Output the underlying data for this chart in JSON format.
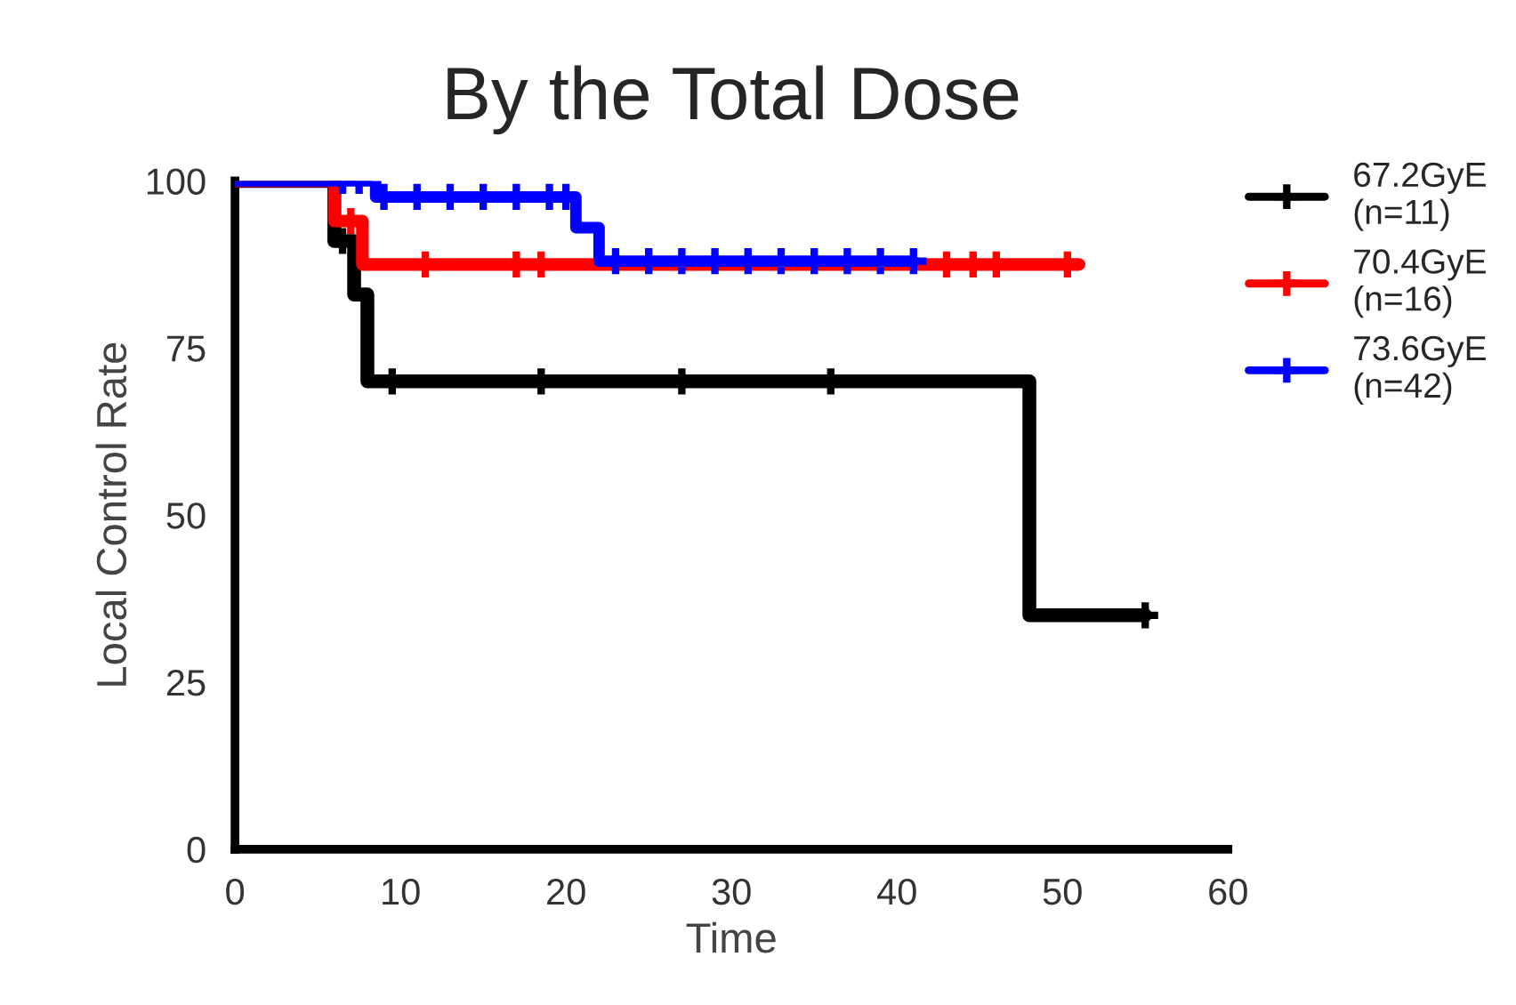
{
  "chart_data": {
    "type": "step",
    "title": "By the Total Dose",
    "xlabel": "Time",
    "ylabel": "Local Control Rate",
    "xlim": [
      0,
      60
    ],
    "xticks": [
      0,
      10,
      20,
      30,
      40,
      50,
      60
    ],
    "ylim": [
      0,
      100
    ],
    "yticks": [
      0,
      25,
      50,
      75,
      100
    ],
    "grid": false,
    "legend": "top right",
    "line_style": "solid",
    "series": [
      {
        "name": "67.2GyE\n(n=11)",
        "color": "#000000",
        "x": [
          0,
          6,
          7.2,
          8,
          48,
          55
        ],
        "values": [
          100,
          91,
          83,
          70,
          35,
          35
        ]
      },
      {
        "name": "70.4GyE\n(n=16)",
        "color": "#ff0000",
        "x": [
          0,
          6,
          7.7,
          51
        ],
        "values": [
          100,
          94,
          87.5,
          87.5
        ]
      },
      {
        "name": "73.6GyE\n(n=42)",
        "color": "#0000ff",
        "x": [
          0,
          8.5,
          20.6,
          22,
          41
        ],
        "values": [
          100,
          97.6,
          93,
          88,
          88
        ]
      },
      {
        "type": "scatter",
        "marker": "cross",
        "color": "#000000",
        "x": [
          6.5,
          9.5,
          18.5,
          27,
          36,
          55
        ],
        "values": [
          91,
          70,
          70,
          70,
          70,
          35
        ]
      },
      {
        "type": "scatter",
        "marker": "cross",
        "color": "#ff0000",
        "x": [
          7,
          11.5,
          17,
          18.5,
          43,
          44.6,
          46,
          50.3
        ],
        "values": [
          94,
          87.5,
          87.5,
          87.5,
          87.5,
          87.5,
          87.5,
          87.5
        ]
      },
      {
        "type": "scatter",
        "marker": "cross",
        "color": "#0000ff",
        "x": [
          6.5,
          7.5,
          9,
          11,
          13,
          15,
          17,
          19,
          20,
          23,
          25,
          27,
          29,
          31,
          33,
          35,
          37,
          39,
          41
        ],
        "values": [
          100,
          100,
          97.6,
          97.6,
          97.6,
          97.6,
          97.6,
          97.6,
          97.6,
          88,
          88,
          88,
          88,
          88,
          88,
          88,
          88,
          88,
          88
        ]
      }
    ]
  }
}
